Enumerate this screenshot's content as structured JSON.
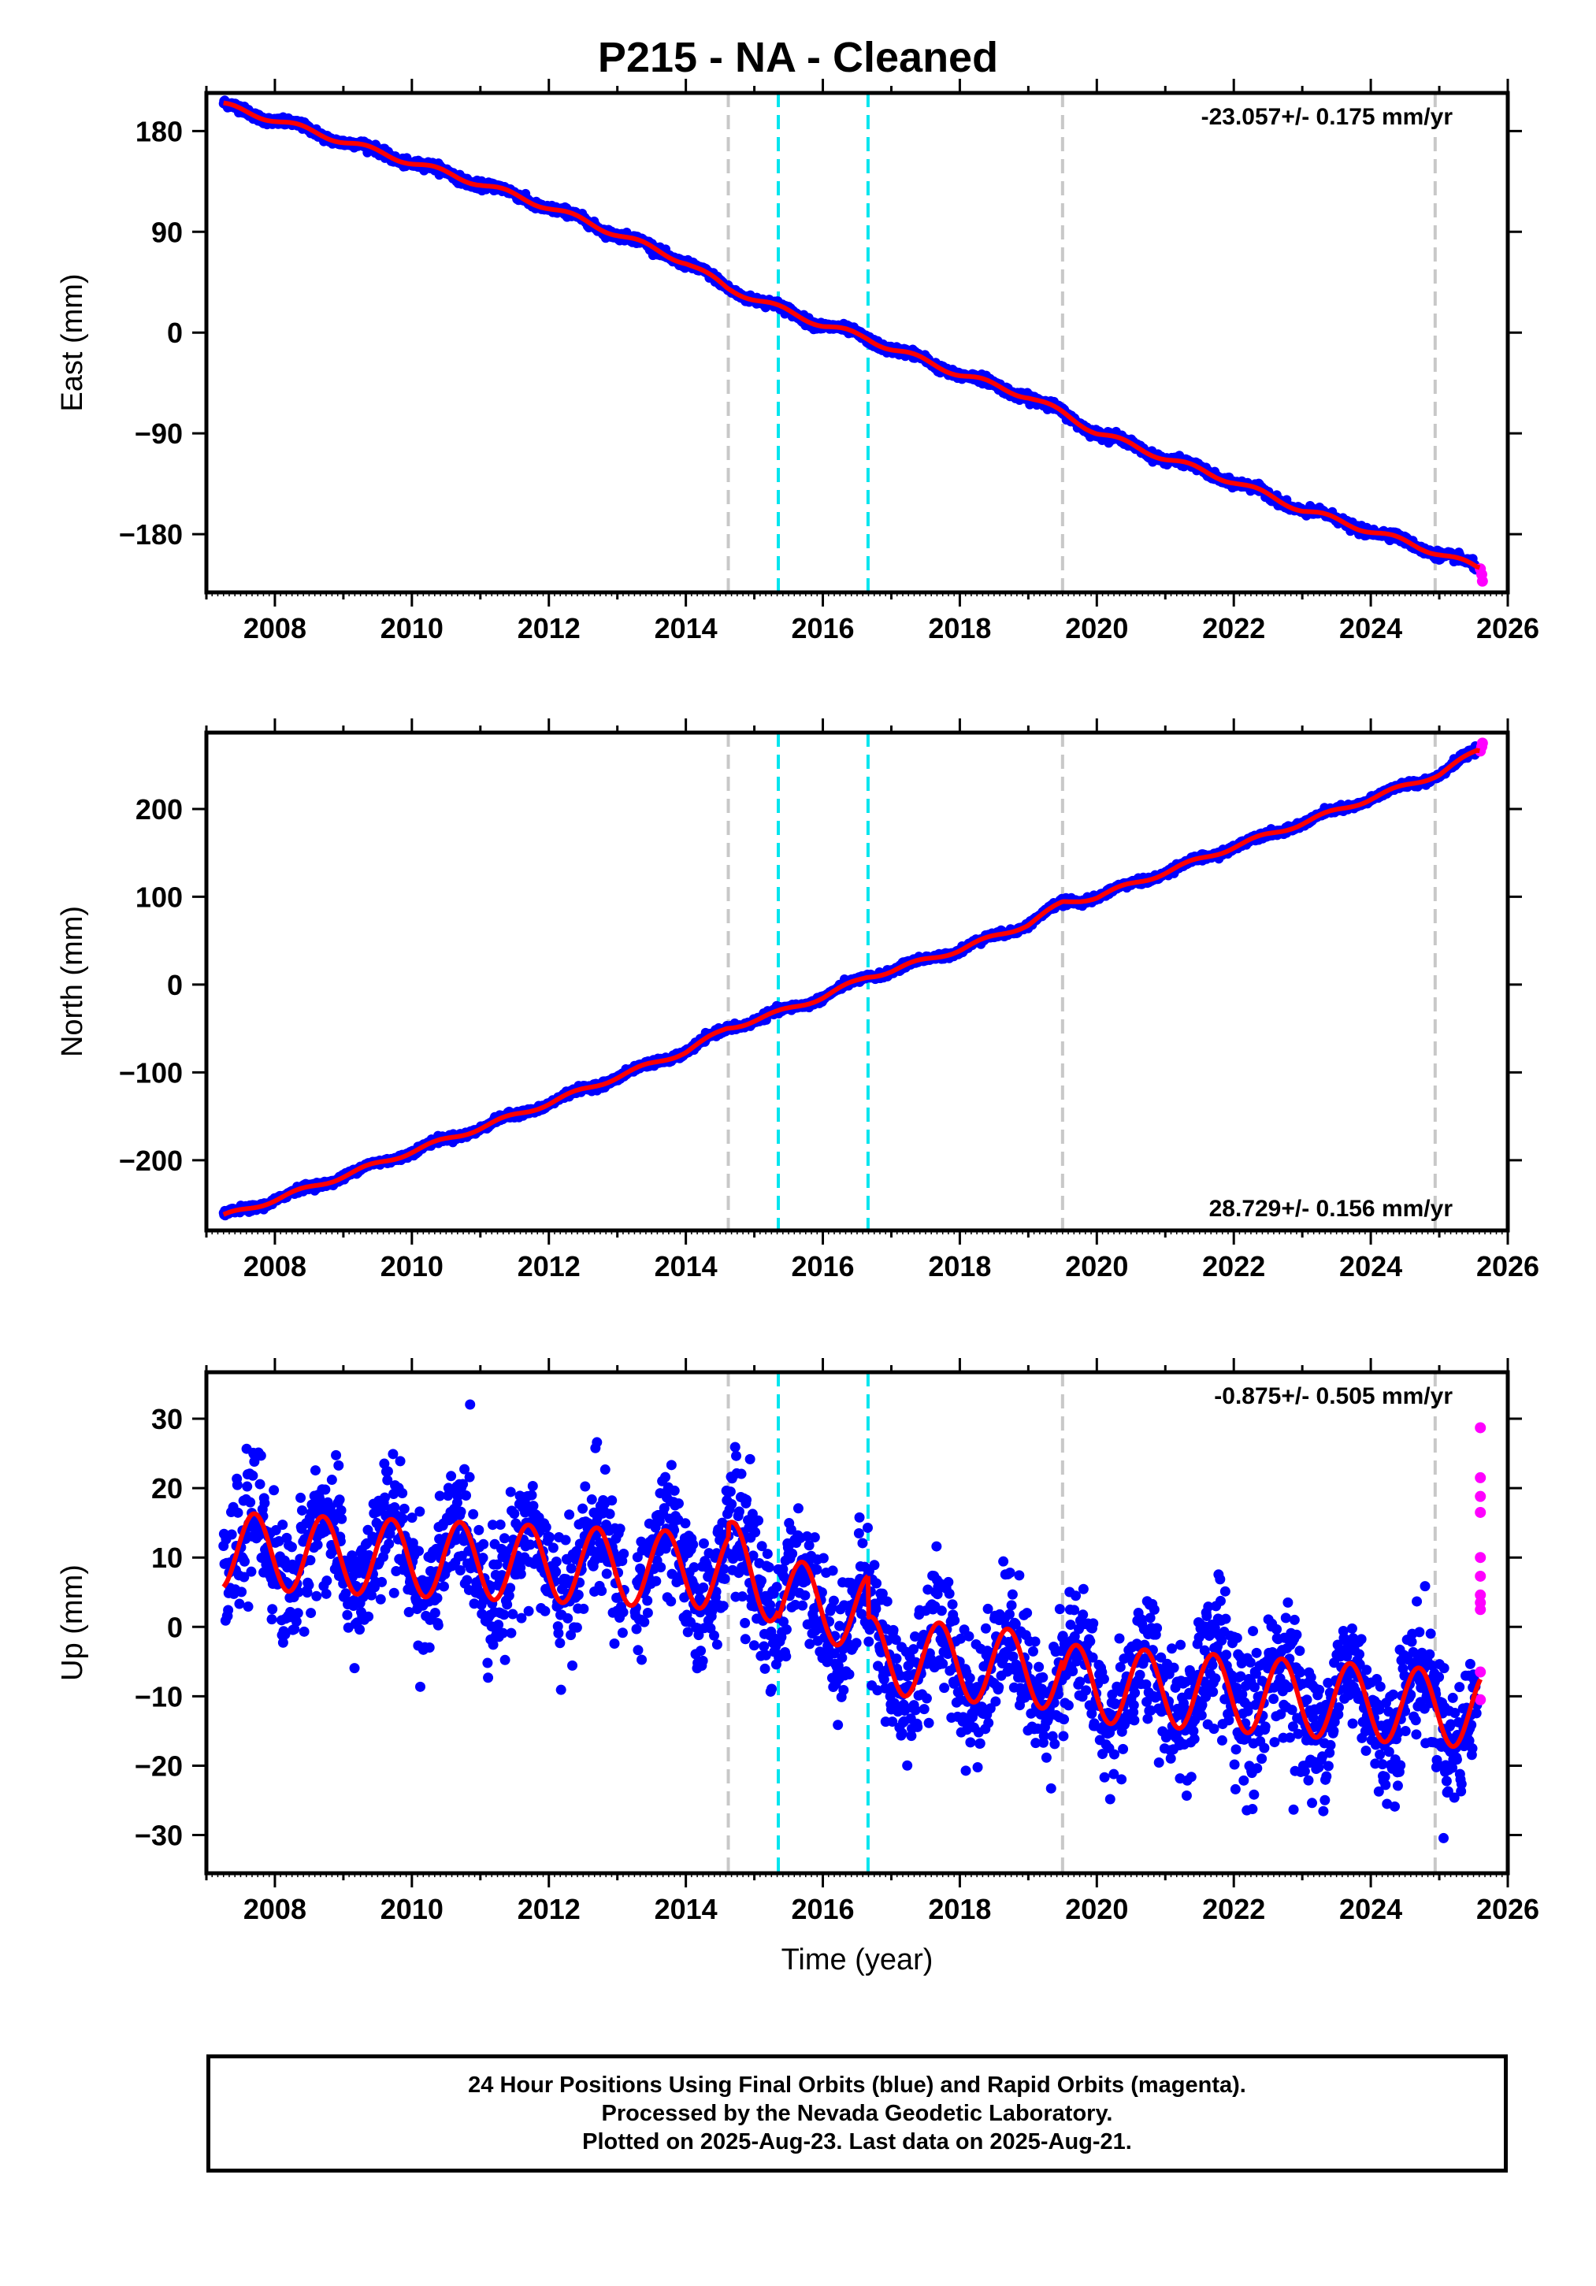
{
  "title": "P215  - NA - Cleaned",
  "footer": {
    "line1": "24 Hour Positions Using Final Orbits (blue) and Rapid Orbits (magenta).",
    "line2": "Processed by the Nevada Geodetic Laboratory.",
    "line3": "Plotted on 2025-Aug-23. Last data on 2025-Aug-21."
  },
  "colors": {
    "final_orbits": "#0000ff",
    "rapid_orbits": "#ff00ff",
    "model_fit": "#ff0000",
    "event_line_gray": "#c8c8c8",
    "event_line_cyan": "#00e5ee"
  },
  "chart_data": [
    {
      "type": "scatter",
      "panel": "east",
      "ylabel": "East (mm)",
      "xlabel": "",
      "xlim": [
        2007.0,
        2026.0
      ],
      "ylim": [
        -232,
        214
      ],
      "xticks": [
        2008,
        2010,
        2012,
        2014,
        2016,
        2018,
        2020,
        2022,
        2024,
        2026
      ],
      "yticks": [
        180,
        90,
        0,
        -90,
        -180
      ],
      "rate_text": "-23.057+/- 0.175 mm/yr",
      "rate_position": "top-right",
      "series": [
        {
          "name": "Final Orbits",
          "color": "#0000ff",
          "x": [
            2007.25,
            2008.0,
            2009.0,
            2010.0,
            2011.0,
            2012.0,
            2013.0,
            2014.0,
            2014.6,
            2015.35,
            2016.0,
            2016.65,
            2017.0,
            2018.0,
            2019.0,
            2019.5,
            2020.0,
            2021.0,
            2022.0,
            2023.0,
            2024.0,
            2025.0,
            2025.55
          ],
          "y": [
            203,
            190,
            171,
            152,
            133,
            112,
            88,
            63,
            40,
            22,
            7,
            -5,
            -14,
            -37,
            -57,
            -72,
            -89,
            -112,
            -133,
            -158,
            -177,
            -197,
            -210
          ]
        },
        {
          "name": "Rapid Orbits",
          "color": "#ff00ff",
          "x": [
            2025.6,
            2025.62,
            2025.63
          ],
          "y": [
            -211,
            -216,
            -222
          ]
        }
      ],
      "model": {
        "color": "#ff0000",
        "x": [
          2007.25,
          2025.6
        ],
        "y": [
          203,
          -210
        ]
      },
      "event_lines": [
        {
          "x": 2014.62,
          "color": "gray"
        },
        {
          "x": 2015.35,
          "color": "cyan"
        },
        {
          "x": 2016.66,
          "color": "cyan"
        },
        {
          "x": 2019.5,
          "color": "gray"
        },
        {
          "x": 2024.94,
          "color": "gray"
        }
      ]
    },
    {
      "type": "scatter",
      "panel": "north",
      "ylabel": "North (mm)",
      "xlabel": "",
      "xlim": [
        2007.0,
        2026.0
      ],
      "ylim": [
        -280,
        287
      ],
      "xticks": [
        2008,
        2010,
        2012,
        2014,
        2016,
        2018,
        2020,
        2022,
        2024,
        2026
      ],
      "yticks": [
        200,
        100,
        0,
        -100,
        -200
      ],
      "rate_text": "28.729+/- 0.156 mm/yr",
      "rate_position": "bottom-right",
      "series": [
        {
          "name": "Final Orbits",
          "color": "#0000ff",
          "x": [
            2007.25,
            2008.0,
            2009.0,
            2010.0,
            2011.0,
            2012.0,
            2013.0,
            2014.0,
            2014.6,
            2015.35,
            2016.0,
            2016.65,
            2017.0,
            2018.0,
            2019.0,
            2019.5,
            2020.0,
            2021.0,
            2022.0,
            2023.0,
            2024.0,
            2025.0,
            2025.55
          ],
          "y": [
            -264,
            -245,
            -218,
            -190,
            -163,
            -135,
            -105,
            -76,
            -50,
            -32,
            -14,
            9,
            16,
            40,
            69,
            93,
            100,
            128,
            157,
            184,
            212,
            240,
            266
          ]
        },
        {
          "name": "Rapid Orbits",
          "color": "#ff00ff",
          "x": [
            2025.6,
            2025.62,
            2025.63
          ],
          "y": [
            266,
            271,
            275
          ]
        }
      ],
      "model": {
        "color": "#ff0000",
        "x": [
          2007.25,
          2025.6
        ],
        "y": [
          -264,
          266
        ]
      },
      "event_lines": [
        {
          "x": 2014.62,
          "color": "gray"
        },
        {
          "x": 2015.35,
          "color": "cyan"
        },
        {
          "x": 2016.66,
          "color": "cyan"
        },
        {
          "x": 2019.5,
          "color": "gray"
        },
        {
          "x": 2024.94,
          "color": "gray"
        }
      ]
    },
    {
      "type": "scatter",
      "panel": "up",
      "ylabel": "Up (mm)",
      "xlabel": "Time (year)",
      "xlim": [
        2007.0,
        2026.0
      ],
      "ylim": [
        -35.5,
        36.7
      ],
      "xticks": [
        2008,
        2010,
        2012,
        2014,
        2016,
        2018,
        2020,
        2022,
        2024,
        2026
      ],
      "yticks": [
        30,
        20,
        10,
        0,
        -10,
        -20,
        -30
      ],
      "rate_text": "-0.875+/- 0.505 mm/yr",
      "rate_position": "top-right",
      "series": [
        {
          "name": "Final Orbits",
          "color": "#0000ff",
          "scatter_sd_mm": 4.5
        },
        {
          "name": "Rapid Orbits",
          "color": "#ff00ff",
          "x": [
            2025.6,
            2025.6,
            2025.6,
            2025.6,
            2025.6,
            2025.6,
            2025.6,
            2025.6,
            2025.6,
            2025.6,
            2025.6
          ],
          "y": [
            28.7,
            21.5,
            18.8,
            16.5,
            10.0,
            7.3,
            4.6,
            3.5,
            2.5,
            -6.5,
            -10.5
          ]
        }
      ],
      "model": {
        "color": "#ff0000",
        "segments": [
          {
            "x0": 2007.25,
            "x1": 2014.62,
            "y0": 11.0,
            "y1": 8.0
          },
          {
            "x0": 2014.62,
            "x1": 2015.35,
            "y0": 10.0,
            "y1": 5.5
          },
          {
            "x0": 2015.35,
            "x1": 2016.66,
            "y0": 4.5,
            "y1": 2.0
          },
          {
            "x0": 2016.66,
            "x1": 2019.5,
            "y0": -4.0,
            "y1": -6.5
          },
          {
            "x0": 2019.5,
            "x1": 2025.6,
            "y0": -8.0,
            "y1": -12.0
          }
        ],
        "annual_amplitude_mm": 5.5,
        "annual_phase_peak_year_fraction": 0.7
      },
      "event_lines": [
        {
          "x": 2014.62,
          "color": "gray"
        },
        {
          "x": 2015.35,
          "color": "cyan"
        },
        {
          "x": 2016.66,
          "color": "cyan"
        },
        {
          "x": 2019.5,
          "color": "gray"
        },
        {
          "x": 2024.94,
          "color": "gray"
        }
      ]
    }
  ]
}
